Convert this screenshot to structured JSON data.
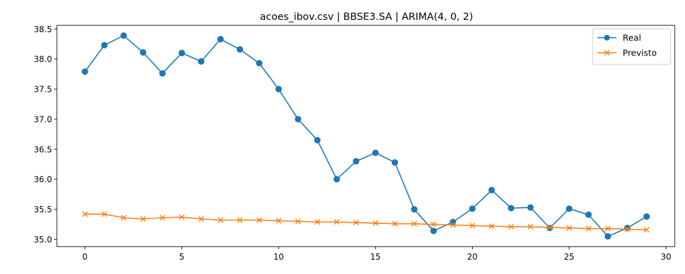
{
  "chart_data": {
    "type": "line",
    "title": "acoes_ibov.csv | BBSE3.SA | ARIMA(4, 0, 2)",
    "xlabel": "",
    "ylabel": "",
    "xlim": [
      -1.45,
      30.45
    ],
    "ylim": [
      34.88,
      38.56
    ],
    "grid": false,
    "legend_position": "top-right",
    "x_ticks": [
      0,
      5,
      10,
      15,
      20,
      25,
      30
    ],
    "x_tick_labels": [
      "0",
      "5",
      "10",
      "15",
      "20",
      "25",
      "30"
    ],
    "y_ticks": [
      35.0,
      35.5,
      36.0,
      36.5,
      37.0,
      37.5,
      38.0,
      38.5
    ],
    "y_tick_labels": [
      "35.0",
      "35.5",
      "36.0",
      "36.5",
      "37.0",
      "37.5",
      "38.0",
      "38.5"
    ],
    "x": [
      0,
      1,
      2,
      3,
      4,
      5,
      6,
      7,
      8,
      9,
      10,
      11,
      12,
      13,
      14,
      15,
      16,
      17,
      18,
      19,
      20,
      21,
      22,
      23,
      24,
      25,
      26,
      27,
      28,
      29
    ],
    "series": [
      {
        "name": "Real",
        "color": "#1f77b4",
        "marker": "circle",
        "values": [
          37.79,
          38.23,
          38.39,
          38.11,
          37.76,
          38.1,
          37.96,
          38.33,
          38.16,
          37.93,
          37.5,
          37.0,
          36.65,
          36.0,
          36.3,
          36.44,
          36.28,
          35.5,
          35.14,
          35.29,
          35.51,
          35.82,
          35.52,
          35.53,
          35.19,
          35.51,
          35.41,
          35.05,
          35.19,
          35.38
        ]
      },
      {
        "name": "Previsto",
        "color": "#ff7f0e",
        "marker": "x",
        "values": [
          35.42,
          35.42,
          35.36,
          35.34,
          35.36,
          35.37,
          35.34,
          35.32,
          35.32,
          35.32,
          35.31,
          35.3,
          35.29,
          35.29,
          35.28,
          35.27,
          35.26,
          35.26,
          35.25,
          35.24,
          35.23,
          35.22,
          35.21,
          35.21,
          35.2,
          35.19,
          35.18,
          35.18,
          35.17,
          35.16
        ]
      }
    ]
  }
}
